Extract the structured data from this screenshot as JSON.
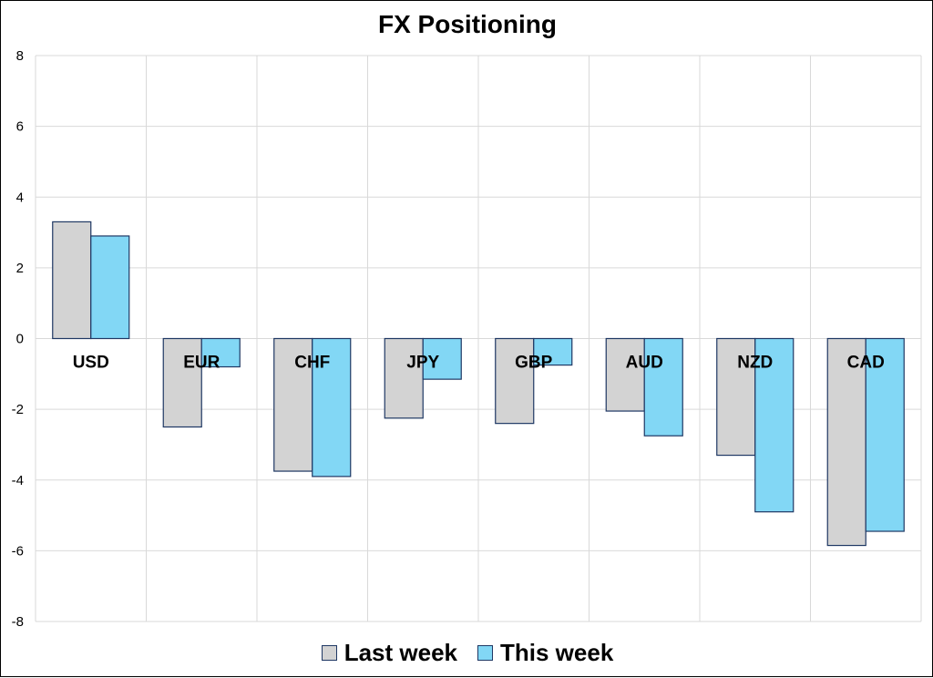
{
  "chart_data": {
    "type": "bar",
    "title": "FX Positioning",
    "categories": [
      "USD",
      "EUR",
      "CHF",
      "JPY",
      "GBP",
      "AUD",
      "NZD",
      "CAD"
    ],
    "series": [
      {
        "name": "Last week",
        "values": [
          3.3,
          -2.5,
          -3.75,
          -2.25,
          -2.4,
          -2.05,
          -3.3,
          -5.85
        ],
        "color": "#d3d3d3"
      },
      {
        "name": "This week",
        "values": [
          2.9,
          -0.8,
          -3.9,
          -1.15,
          -0.75,
          -2.75,
          -4.9,
          -5.45
        ],
        "color": "#82d7f5"
      }
    ],
    "ylim": [
      -8,
      8
    ],
    "yticks": [
      "8",
      "6",
      "4",
      "2",
      "0",
      "-2",
      "-4",
      "-6",
      "-8"
    ],
    "grid": true,
    "legend_position": "bottom",
    "bar_border_color": "#1f3864"
  }
}
